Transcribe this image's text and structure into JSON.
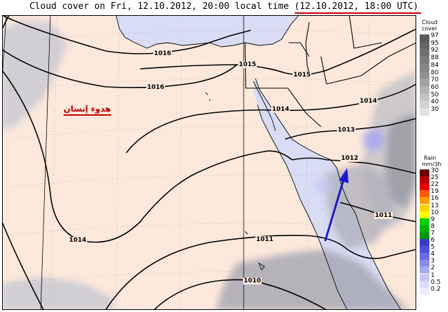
{
  "title": "Cloud cover on Fri, 12.10.2012, 20:00 local time (12.10.2012, 18:00 UTC)",
  "annotation_text": "هدوء إنسان",
  "isobars": [
    {
      "label": "1016"
    },
    {
      "label": "1015"
    },
    {
      "label": "1015"
    },
    {
      "label": "1016"
    },
    {
      "label": "1014"
    },
    {
      "label": "1014"
    },
    {
      "label": "1013"
    },
    {
      "label": "1012"
    },
    {
      "label": "1011"
    },
    {
      "label": "1014"
    },
    {
      "label": "1011"
    },
    {
      "label": "1010"
    }
  ],
  "cloud_legend": {
    "title1": "Cloud",
    "title2": "cover",
    "levels": [
      "97",
      "95",
      "92",
      "88",
      "84",
      "80",
      "70",
      "60",
      "50",
      "40",
      "30"
    ],
    "colors": [
      "#5a5a5a",
      "#666666",
      "#717171",
      "#7c7c7c",
      "#878787",
      "#939393",
      "#a2a2a2",
      "#b2b2b2",
      "#c3c3c3",
      "#d3d3d3",
      "#e2e2e2"
    ]
  },
  "rain_legend": {
    "title1": "Rain",
    "title2": "mm/3h",
    "levels": [
      "30",
      "25",
      "22",
      "19",
      "16",
      "13",
      "10",
      "9",
      "8",
      "7",
      "6",
      "5",
      "4",
      "3",
      "2",
      "1",
      "0.5",
      "0.2"
    ],
    "colors": [
      "#6a0000",
      "#b80000",
      "#e80000",
      "#ff5a00",
      "#ff9a00",
      "#ffd200",
      "#ffff00",
      "#00d200",
      "#00b400",
      "#009600",
      "#3a3ac8",
      "#5050d8",
      "#6a6ae2",
      "#8a8aea",
      "#aaaaf0",
      "#c6c6f6",
      "#dcdcfa",
      "#ececfc"
    ]
  },
  "colors": {
    "land": "#fde9dc",
    "sea": "#d8dcf4",
    "annotation": "#c00000",
    "arrow": "#1a1ad0"
  }
}
